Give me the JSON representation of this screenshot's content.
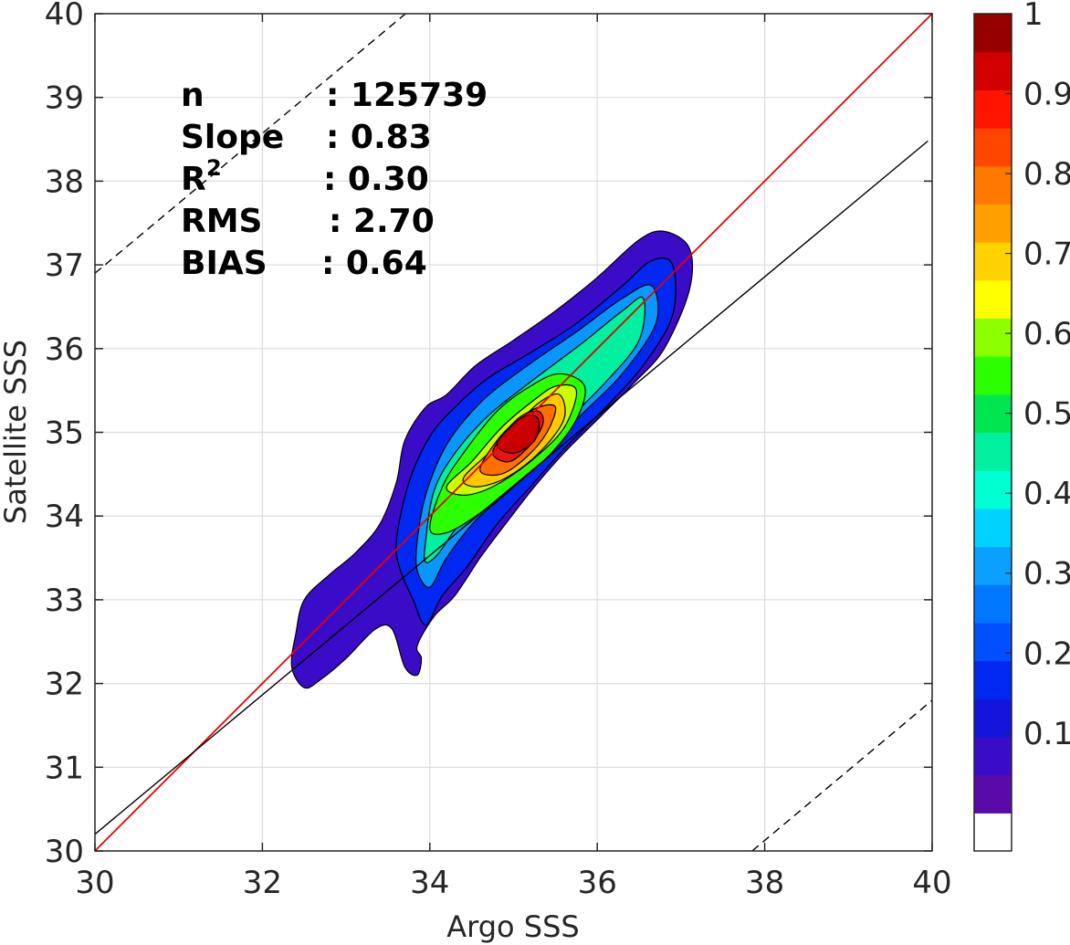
{
  "chart_data": {
    "type": "contour",
    "xlabel": "Argo SSS",
    "ylabel": "Satellite SSS",
    "xlim": [
      30,
      40
    ],
    "ylim": [
      30,
      40
    ],
    "xticks": [
      "30",
      "32",
      "34",
      "36",
      "38",
      "40"
    ],
    "yticks": [
      "30",
      "31",
      "32",
      "33",
      "34",
      "35",
      "36",
      "37",
      "38",
      "39",
      "40"
    ],
    "grid": true,
    "stats": [
      {
        "name": "n",
        "value": ": 125739"
      },
      {
        "name": "Slope",
        "value": ": 0.83"
      },
      {
        "name": "R",
        "sup": "2",
        "value": ": 0.30"
      },
      {
        "name": "RMS",
        "value": ": 2.70"
      },
      {
        "name": "BIAS",
        "value": ": 0.64"
      }
    ],
    "lines": [
      {
        "kind": "one-to-one",
        "color": "#e60000",
        "points": [
          [
            30,
            30
          ],
          [
            40,
            40
          ]
        ]
      },
      {
        "kind": "regression",
        "color": "#000000",
        "points": [
          [
            30,
            30.2
          ],
          [
            39.95,
            38.48
          ]
        ]
      },
      {
        "kind": "dashed-upper",
        "color": "#000000",
        "points": [
          [
            30,
            36.9
          ],
          [
            33.71,
            40
          ]
        ]
      },
      {
        "kind": "dashed-lower",
        "color": "#000000",
        "points": [
          [
            37.85,
            30
          ],
          [
            40,
            31.8
          ]
        ]
      }
    ],
    "contour_levels": [
      {
        "level": 0.05,
        "color": "#3a0cc8",
        "points": [
          [
            32.4,
            32.6
          ],
          [
            32.5,
            33.0
          ],
          [
            32.8,
            33.3
          ],
          [
            33.1,
            33.55
          ],
          [
            33.4,
            33.9
          ],
          [
            33.6,
            34.4
          ],
          [
            33.7,
            34.9
          ],
          [
            33.95,
            35.3
          ],
          [
            34.2,
            35.45
          ],
          [
            34.55,
            35.8
          ],
          [
            35.0,
            36.1
          ],
          [
            35.5,
            36.45
          ],
          [
            36.0,
            36.85
          ],
          [
            36.5,
            37.3
          ],
          [
            36.8,
            37.4
          ],
          [
            37.1,
            37.2
          ],
          [
            37.1,
            36.7
          ],
          [
            36.8,
            36.0
          ],
          [
            36.45,
            35.6
          ],
          [
            36.05,
            35.2
          ],
          [
            35.6,
            34.75
          ],
          [
            35.25,
            34.35
          ],
          [
            34.9,
            33.9
          ],
          [
            34.6,
            33.5
          ],
          [
            34.3,
            33.05
          ],
          [
            34.05,
            32.8
          ],
          [
            33.85,
            32.45
          ],
          [
            33.9,
            32.3
          ],
          [
            33.85,
            32.1
          ],
          [
            33.7,
            32.2
          ],
          [
            33.55,
            32.65
          ],
          [
            33.35,
            32.65
          ],
          [
            33.0,
            32.3
          ],
          [
            32.7,
            32.05
          ],
          [
            32.5,
            31.95
          ],
          [
            32.35,
            32.2
          ]
        ]
      },
      {
        "level": 0.15,
        "color": "#0028f0",
        "points": [
          [
            33.6,
            33.7
          ],
          [
            33.75,
            34.4
          ],
          [
            34.0,
            34.95
          ],
          [
            34.3,
            35.3
          ],
          [
            34.7,
            35.65
          ],
          [
            35.2,
            35.95
          ],
          [
            35.75,
            36.3
          ],
          [
            36.3,
            36.75
          ],
          [
            36.65,
            37.05
          ],
          [
            36.9,
            37.0
          ],
          [
            36.9,
            36.4
          ],
          [
            36.55,
            35.8
          ],
          [
            36.1,
            35.3
          ],
          [
            35.6,
            34.8
          ],
          [
            35.2,
            34.35
          ],
          [
            34.8,
            33.9
          ],
          [
            34.45,
            33.4
          ],
          [
            34.15,
            33.05
          ],
          [
            33.95,
            32.7
          ],
          [
            33.8,
            33.0
          ],
          [
            33.65,
            33.35
          ]
        ]
      },
      {
        "level": 0.25,
        "color": "#0a96ff",
        "points": [
          [
            33.85,
            33.7
          ],
          [
            33.95,
            34.25
          ],
          [
            34.2,
            34.85
          ],
          [
            34.6,
            35.35
          ],
          [
            35.1,
            35.75
          ],
          [
            35.75,
            36.2
          ],
          [
            36.3,
            36.6
          ],
          [
            36.65,
            36.75
          ],
          [
            36.7,
            36.3
          ],
          [
            36.3,
            35.7
          ],
          [
            35.85,
            35.25
          ],
          [
            35.4,
            34.8
          ],
          [
            35.0,
            34.35
          ],
          [
            34.55,
            33.95
          ],
          [
            34.2,
            33.5
          ],
          [
            34.0,
            33.15
          ],
          [
            33.85,
            33.35
          ]
        ]
      },
      {
        "level": 0.35,
        "color": "#00f0a0",
        "points": [
          [
            33.95,
            33.7
          ],
          [
            34.05,
            34.3
          ],
          [
            34.3,
            34.75
          ],
          [
            34.7,
            35.2
          ],
          [
            35.2,
            35.6
          ],
          [
            35.8,
            36.05
          ],
          [
            36.3,
            36.45
          ],
          [
            36.55,
            36.6
          ],
          [
            36.5,
            36.1
          ],
          [
            36.1,
            35.6
          ],
          [
            35.65,
            35.15
          ],
          [
            35.2,
            34.7
          ],
          [
            34.75,
            34.3
          ],
          [
            34.35,
            33.9
          ],
          [
            34.1,
            33.55
          ],
          [
            33.95,
            33.45
          ]
        ]
      },
      {
        "level": 0.45,
        "color": "#2cff00",
        "points": [
          [
            34.0,
            33.85
          ],
          [
            34.15,
            34.35
          ],
          [
            34.4,
            34.75
          ],
          [
            34.8,
            35.25
          ],
          [
            35.2,
            35.55
          ],
          [
            35.55,
            35.7
          ],
          [
            35.85,
            35.55
          ],
          [
            35.75,
            35.15
          ],
          [
            35.45,
            34.75
          ],
          [
            35.0,
            34.35
          ],
          [
            34.55,
            34.0
          ],
          [
            34.2,
            33.8
          ]
        ]
      },
      {
        "level": 0.55,
        "color": "#c8ff00",
        "points": [
          [
            34.2,
            34.35
          ],
          [
            34.5,
            34.65
          ],
          [
            34.85,
            35.05
          ],
          [
            35.2,
            35.35
          ],
          [
            35.5,
            35.55
          ],
          [
            35.75,
            35.5
          ],
          [
            35.6,
            35.05
          ],
          [
            35.2,
            34.65
          ],
          [
            34.75,
            34.35
          ],
          [
            34.4,
            34.25
          ]
        ]
      },
      {
        "level": 0.65,
        "color": "#ffc800",
        "points": [
          [
            34.4,
            34.45
          ],
          [
            34.7,
            34.75
          ],
          [
            35.0,
            35.05
          ],
          [
            35.3,
            35.35
          ],
          [
            35.55,
            35.45
          ],
          [
            35.6,
            35.15
          ],
          [
            35.3,
            34.75
          ],
          [
            34.9,
            34.45
          ],
          [
            34.55,
            34.35
          ]
        ]
      },
      {
        "level": 0.75,
        "color": "#ff6e00",
        "points": [
          [
            34.6,
            34.55
          ],
          [
            34.8,
            34.9
          ],
          [
            35.05,
            35.15
          ],
          [
            35.3,
            35.3
          ],
          [
            35.5,
            35.3
          ],
          [
            35.4,
            35.0
          ],
          [
            35.15,
            34.7
          ],
          [
            34.85,
            34.5
          ]
        ]
      },
      {
        "level": 0.85,
        "color": "#e81414",
        "points": [
          [
            34.75,
            34.75
          ],
          [
            34.9,
            35.0
          ],
          [
            35.1,
            35.2
          ],
          [
            35.3,
            35.25
          ],
          [
            35.35,
            35.1
          ],
          [
            35.2,
            34.85
          ],
          [
            34.95,
            34.65
          ]
        ]
      },
      {
        "level": 0.92,
        "color": "#c80000",
        "points": [
          [
            34.8,
            34.85
          ],
          [
            34.95,
            35.05
          ],
          [
            35.15,
            35.2
          ],
          [
            35.3,
            35.15
          ],
          [
            35.25,
            34.9
          ],
          [
            35.0,
            34.75
          ]
        ]
      }
    ],
    "colorbar": {
      "ticks": [
        "0.1",
        "0.2",
        "0.3",
        "0.4",
        "0.5",
        "0.6",
        "0.7",
        "0.8",
        "0.9",
        "1"
      ],
      "colors": [
        "#ffffff",
        "#5a0aa8",
        "#3a0cc8",
        "#1414dc",
        "#0028f0",
        "#0050ff",
        "#0078ff",
        "#0aa0ff",
        "#00d2ff",
        "#00ffd2",
        "#00f0a0",
        "#00e650",
        "#2cff00",
        "#8cff00",
        "#ffff00",
        "#ffd200",
        "#ffa000",
        "#ff7800",
        "#ff4600",
        "#ff1400",
        "#d20000",
        "#960000"
      ]
    }
  }
}
